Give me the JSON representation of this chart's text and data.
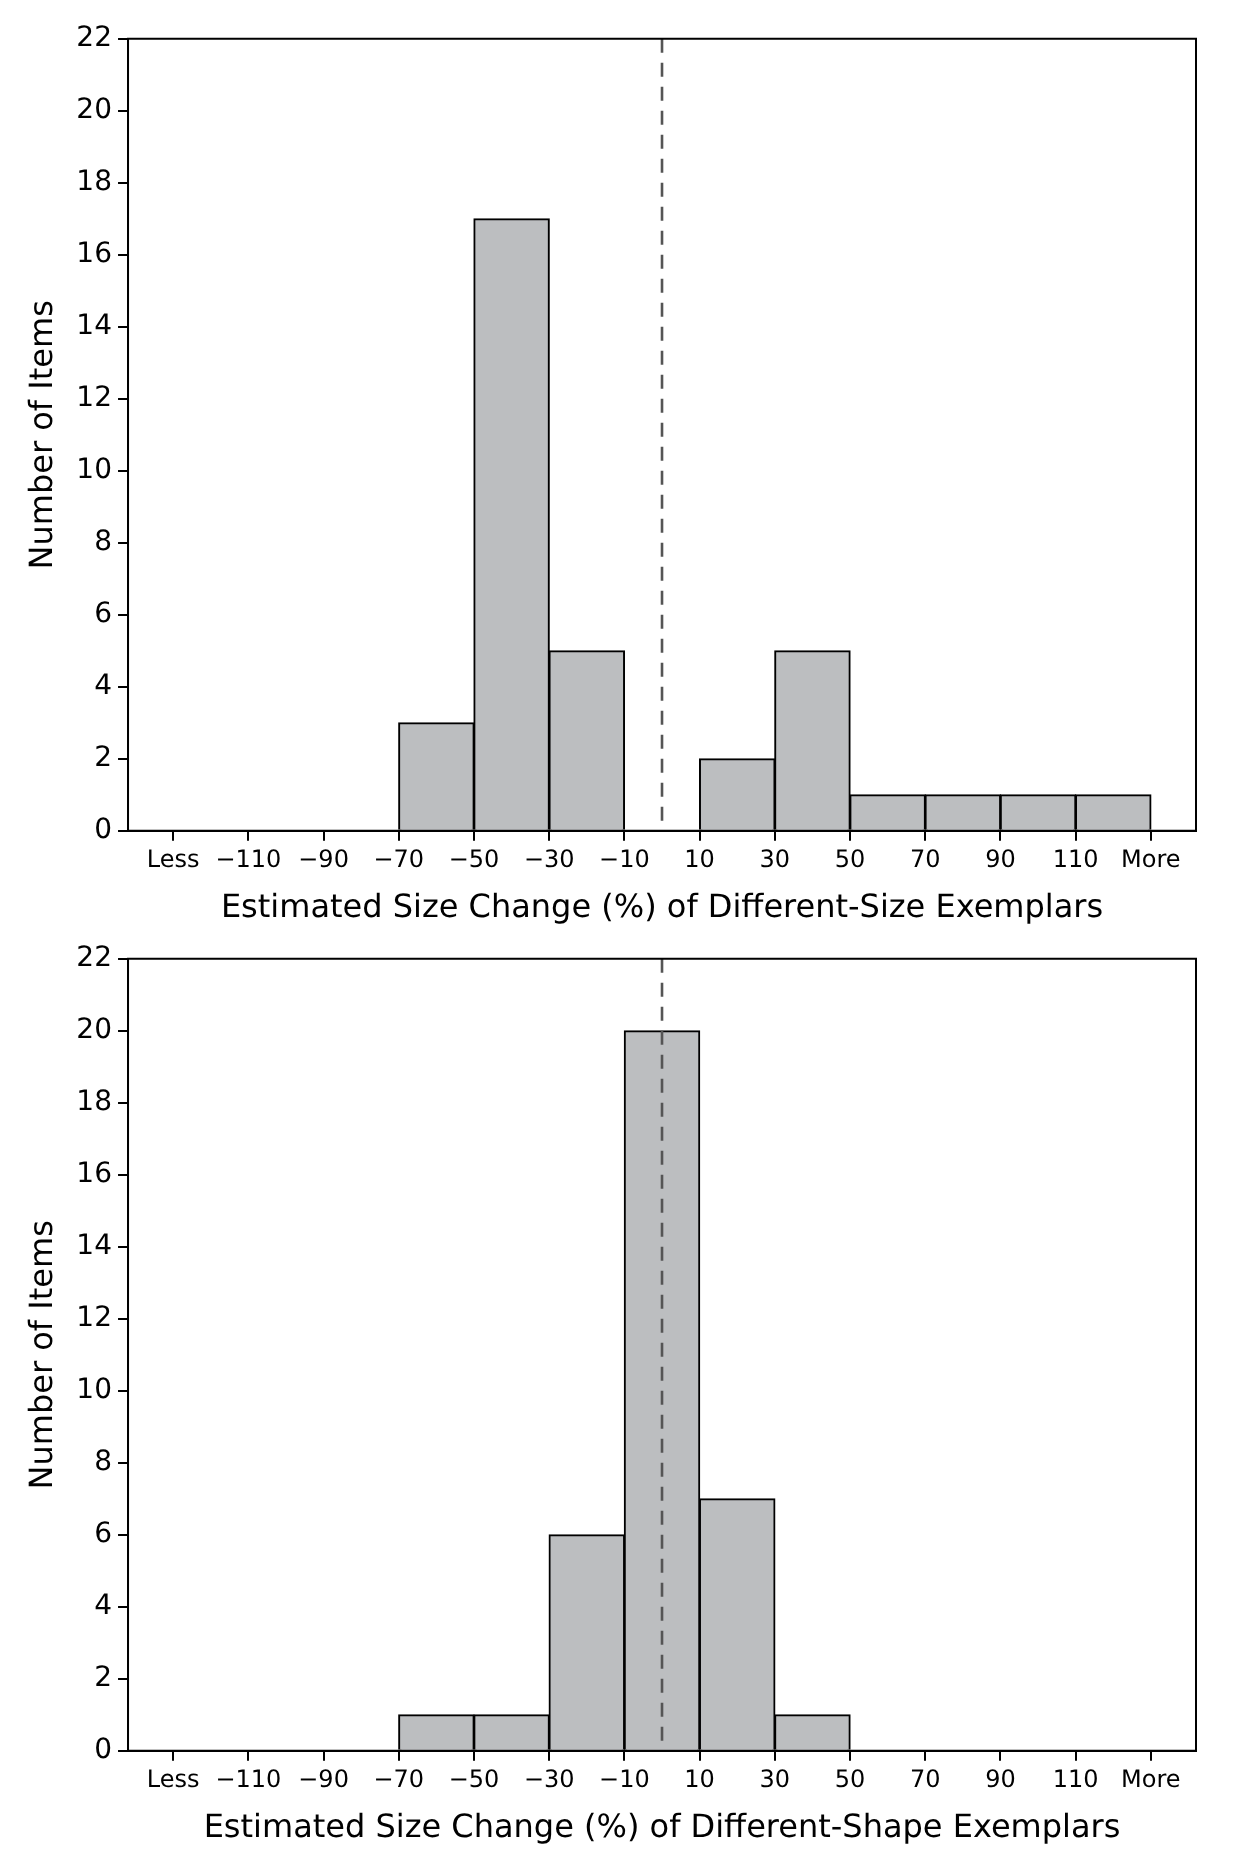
{
  "chart_data": [
    {
      "type": "histogram",
      "xlabel": "Estimated Size Change (%) of Different-Size Exemplars",
      "ylabel": "Number of Items",
      "bins": [
        -130,
        -110,
        -90,
        -70,
        -50,
        -30,
        -10,
        10,
        30,
        50,
        70,
        90,
        110,
        130
      ],
      "values": [
        0,
        0,
        0,
        3,
        17,
        5,
        0,
        2,
        5,
        1,
        1,
        1,
        1
      ],
      "color": "#bcbec0",
      "xlim": [
        -142,
        142
      ],
      "xticks": [
        {
          "value": -130,
          "label": "Less"
        },
        {
          "value": -110,
          "label": "−110"
        },
        {
          "value": -90,
          "label": "−90"
        },
        {
          "value": -70,
          "label": "−70"
        },
        {
          "value": -50,
          "label": "−50"
        },
        {
          "value": -30,
          "label": "−30"
        },
        {
          "value": -10,
          "label": "−10"
        },
        10,
        30,
        50,
        70,
        90,
        110,
        {
          "value": 130,
          "label": "More"
        }
      ],
      "ylim": [
        0,
        22
      ],
      "yticks": [
        0,
        2,
        4,
        6,
        8,
        10,
        12,
        14,
        16,
        18,
        20,
        22
      ],
      "ref_lines": [
        {
          "axis": "x",
          "value": 0,
          "label": null,
          "color": "#555555",
          "line_style": "dashed"
        }
      ]
    },
    {
      "type": "histogram",
      "xlabel": "Estimated Size Change (%) of Different-Shape Exemplars",
      "ylabel": "Number of Items",
      "bins": [
        -130,
        -110,
        -90,
        -70,
        -50,
        -30,
        -10,
        10,
        30,
        50,
        70,
        90,
        110,
        130
      ],
      "values": [
        0,
        0,
        0,
        1,
        1,
        6,
        20,
        7,
        1,
        0,
        0,
        0,
        0
      ],
      "color": "#bcbec0",
      "xlim": [
        -142,
        142
      ],
      "xticks": [
        {
          "value": -130,
          "label": "Less"
        },
        {
          "value": -110,
          "label": "−110"
        },
        {
          "value": -90,
          "label": "−90"
        },
        {
          "value": -70,
          "label": "−70"
        },
        {
          "value": -50,
          "label": "−50"
        },
        {
          "value": -30,
          "label": "−30"
        },
        {
          "value": -10,
          "label": "−10"
        },
        10,
        30,
        50,
        70,
        90,
        110,
        {
          "value": 130,
          "label": "More"
        }
      ],
      "ylim": [
        0,
        22
      ],
      "yticks": [
        0,
        2,
        4,
        6,
        8,
        10,
        12,
        14,
        16,
        18,
        20,
        22
      ],
      "ref_lines": [
        {
          "axis": "x",
          "value": 0,
          "label": null,
          "color": "#555555",
          "line_style": "dashed"
        }
      ]
    }
  ]
}
